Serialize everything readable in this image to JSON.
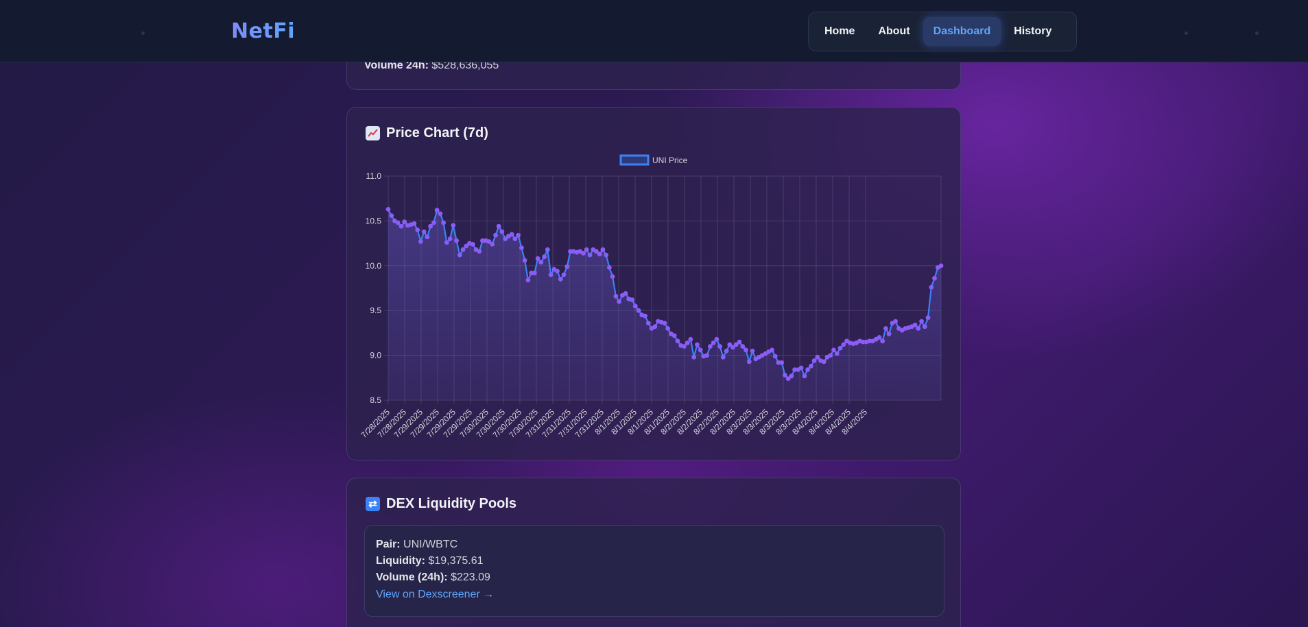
{
  "header": {
    "logo": "NetFi",
    "nav": [
      {
        "label": "Home",
        "active": false
      },
      {
        "label": "About",
        "active": false
      },
      {
        "label": "Dashboard",
        "active": true
      },
      {
        "label": "History",
        "active": false
      }
    ]
  },
  "market": {
    "volume_label": "Volume 24h:",
    "volume_value": "$528,636,055"
  },
  "chart_section": {
    "title": "Price Chart (7d)",
    "icon": "chart-increasing-icon"
  },
  "chart_data": {
    "type": "line",
    "title": "",
    "xlabel": "",
    "ylabel": "",
    "ylim": [
      8.5,
      11.0
    ],
    "yticks": [
      "11.0",
      "10.5",
      "10.0",
      "9.5",
      "9.0",
      "8.5"
    ],
    "grid": true,
    "legend_position": "top-center",
    "line_color": "#3b82f6",
    "point_color": "#8b5cf6",
    "x_tick_labels": [
      "7/28/2025",
      "7/28/2025",
      "7/29/2025",
      "7/29/2025",
      "7/29/2025",
      "7/29/2025",
      "7/30/2025",
      "7/30/2025",
      "7/30/2025",
      "7/30/2025",
      "7/31/2025",
      "7/31/2025",
      "7/31/2025",
      "7/31/2025",
      "8/1/2025",
      "8/1/2025",
      "8/1/2025",
      "8/1/2025",
      "8/2/2025",
      "8/2/2025",
      "8/2/2025",
      "8/2/2025",
      "8/3/2025",
      "8/3/2025",
      "8/3/2025",
      "8/3/2025",
      "8/4/2025",
      "8/4/2025",
      "8/4/2025",
      "8/4/2025"
    ],
    "series": [
      {
        "name": "UNI Price",
        "values": [
          10.63,
          10.56,
          10.5,
          10.48,
          10.44,
          10.49,
          10.45,
          10.46,
          10.47,
          10.4,
          10.27,
          10.38,
          10.32,
          10.44,
          10.48,
          10.62,
          10.58,
          10.48,
          10.26,
          10.3,
          10.45,
          10.28,
          10.12,
          10.18,
          10.22,
          10.25,
          10.24,
          10.18,
          10.16,
          10.28,
          10.28,
          10.27,
          10.24,
          10.34,
          10.44,
          10.38,
          10.3,
          10.33,
          10.35,
          10.3,
          10.34,
          10.2,
          10.06,
          9.84,
          9.92,
          9.92,
          10.08,
          10.04,
          10.1,
          10.18,
          9.9,
          9.96,
          9.94,
          9.85,
          9.9,
          9.99,
          10.16,
          10.16,
          10.15,
          10.16,
          10.14,
          10.18,
          10.12,
          10.18,
          10.16,
          10.13,
          10.18,
          10.12,
          9.98,
          9.88,
          9.66,
          9.6,
          9.67,
          9.69,
          9.63,
          9.62,
          9.55,
          9.5,
          9.45,
          9.44,
          9.36,
          9.3,
          9.32,
          9.38,
          9.37,
          9.36,
          9.3,
          9.24,
          9.22,
          9.16,
          9.11,
          9.1,
          9.14,
          9.18,
          8.98,
          9.12,
          9.06,
          8.99,
          9.0,
          9.1,
          9.14,
          9.18,
          9.1,
          8.98,
          9.05,
          9.12,
          9.09,
          9.12,
          9.15,
          9.1,
          9.06,
          8.93,
          9.05,
          8.96,
          8.98,
          9.0,
          9.02,
          9.04,
          9.06,
          8.99,
          8.92,
          8.92,
          8.78,
          8.74,
          8.77,
          8.84,
          8.84,
          8.86,
          8.77,
          8.84,
          8.88,
          8.94,
          8.98,
          8.94,
          8.93,
          8.98,
          9.0,
          9.06,
          9.02,
          9.08,
          9.12,
          9.16,
          9.14,
          9.13,
          9.14,
          9.16,
          9.15,
          9.15,
          9.16,
          9.16,
          9.18,
          9.2,
          9.16,
          9.3,
          9.24,
          9.36,
          9.38,
          9.3,
          9.28,
          9.3,
          9.31,
          9.32,
          9.34,
          9.3,
          9.38,
          9.32,
          9.42,
          9.76,
          9.86,
          9.98,
          10.0
        ]
      }
    ]
  },
  "dex_section": {
    "title": "DEX Liquidity Pools",
    "icon": "repeat-arrows-icon",
    "pool": {
      "pair_label": "Pair:",
      "pair_value": "UNI/WBTC",
      "liquidity_label": "Liquidity:",
      "liquidity_value": "$19,375.61",
      "volume_label": "Volume (24h):",
      "volume_value": "$223.09",
      "link_text": "View on Dexscreener →"
    }
  }
}
